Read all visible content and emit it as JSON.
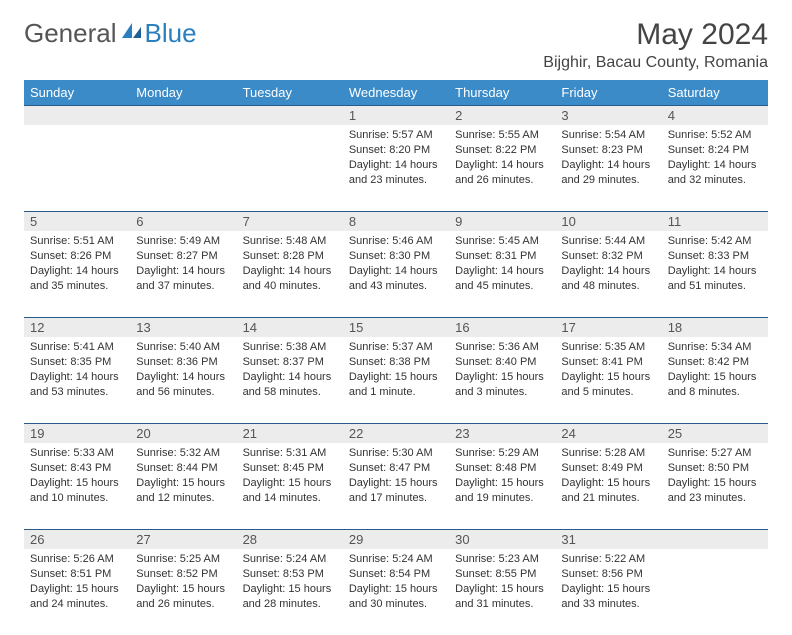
{
  "brand": {
    "part1": "General",
    "part2": "Blue"
  },
  "title": "May 2024",
  "location": "Bijghir, Bacau County, Romania",
  "colors": {
    "header_bg": "#3b8bc8",
    "daynum_bg": "#ececec",
    "rule": "#2a5a8a",
    "brand_blue": "#2a7fbf"
  },
  "weekdays": [
    "Sunday",
    "Monday",
    "Tuesday",
    "Wednesday",
    "Thursday",
    "Friday",
    "Saturday"
  ],
  "weeks": [
    [
      null,
      null,
      null,
      {
        "n": "1",
        "sr": "Sunrise: 5:57 AM",
        "ss": "Sunset: 8:20 PM",
        "d1": "Daylight: 14 hours",
        "d2": "and 23 minutes."
      },
      {
        "n": "2",
        "sr": "Sunrise: 5:55 AM",
        "ss": "Sunset: 8:22 PM",
        "d1": "Daylight: 14 hours",
        "d2": "and 26 minutes."
      },
      {
        "n": "3",
        "sr": "Sunrise: 5:54 AM",
        "ss": "Sunset: 8:23 PM",
        "d1": "Daylight: 14 hours",
        "d2": "and 29 minutes."
      },
      {
        "n": "4",
        "sr": "Sunrise: 5:52 AM",
        "ss": "Sunset: 8:24 PM",
        "d1": "Daylight: 14 hours",
        "d2": "and 32 minutes."
      }
    ],
    [
      {
        "n": "5",
        "sr": "Sunrise: 5:51 AM",
        "ss": "Sunset: 8:26 PM",
        "d1": "Daylight: 14 hours",
        "d2": "and 35 minutes."
      },
      {
        "n": "6",
        "sr": "Sunrise: 5:49 AM",
        "ss": "Sunset: 8:27 PM",
        "d1": "Daylight: 14 hours",
        "d2": "and 37 minutes."
      },
      {
        "n": "7",
        "sr": "Sunrise: 5:48 AM",
        "ss": "Sunset: 8:28 PM",
        "d1": "Daylight: 14 hours",
        "d2": "and 40 minutes."
      },
      {
        "n": "8",
        "sr": "Sunrise: 5:46 AM",
        "ss": "Sunset: 8:30 PM",
        "d1": "Daylight: 14 hours",
        "d2": "and 43 minutes."
      },
      {
        "n": "9",
        "sr": "Sunrise: 5:45 AM",
        "ss": "Sunset: 8:31 PM",
        "d1": "Daylight: 14 hours",
        "d2": "and 45 minutes."
      },
      {
        "n": "10",
        "sr": "Sunrise: 5:44 AM",
        "ss": "Sunset: 8:32 PM",
        "d1": "Daylight: 14 hours",
        "d2": "and 48 minutes."
      },
      {
        "n": "11",
        "sr": "Sunrise: 5:42 AM",
        "ss": "Sunset: 8:33 PM",
        "d1": "Daylight: 14 hours",
        "d2": "and 51 minutes."
      }
    ],
    [
      {
        "n": "12",
        "sr": "Sunrise: 5:41 AM",
        "ss": "Sunset: 8:35 PM",
        "d1": "Daylight: 14 hours",
        "d2": "and 53 minutes."
      },
      {
        "n": "13",
        "sr": "Sunrise: 5:40 AM",
        "ss": "Sunset: 8:36 PM",
        "d1": "Daylight: 14 hours",
        "d2": "and 56 minutes."
      },
      {
        "n": "14",
        "sr": "Sunrise: 5:38 AM",
        "ss": "Sunset: 8:37 PM",
        "d1": "Daylight: 14 hours",
        "d2": "and 58 minutes."
      },
      {
        "n": "15",
        "sr": "Sunrise: 5:37 AM",
        "ss": "Sunset: 8:38 PM",
        "d1": "Daylight: 15 hours",
        "d2": "and 1 minute."
      },
      {
        "n": "16",
        "sr": "Sunrise: 5:36 AM",
        "ss": "Sunset: 8:40 PM",
        "d1": "Daylight: 15 hours",
        "d2": "and 3 minutes."
      },
      {
        "n": "17",
        "sr": "Sunrise: 5:35 AM",
        "ss": "Sunset: 8:41 PM",
        "d1": "Daylight: 15 hours",
        "d2": "and 5 minutes."
      },
      {
        "n": "18",
        "sr": "Sunrise: 5:34 AM",
        "ss": "Sunset: 8:42 PM",
        "d1": "Daylight: 15 hours",
        "d2": "and 8 minutes."
      }
    ],
    [
      {
        "n": "19",
        "sr": "Sunrise: 5:33 AM",
        "ss": "Sunset: 8:43 PM",
        "d1": "Daylight: 15 hours",
        "d2": "and 10 minutes."
      },
      {
        "n": "20",
        "sr": "Sunrise: 5:32 AM",
        "ss": "Sunset: 8:44 PM",
        "d1": "Daylight: 15 hours",
        "d2": "and 12 minutes."
      },
      {
        "n": "21",
        "sr": "Sunrise: 5:31 AM",
        "ss": "Sunset: 8:45 PM",
        "d1": "Daylight: 15 hours",
        "d2": "and 14 minutes."
      },
      {
        "n": "22",
        "sr": "Sunrise: 5:30 AM",
        "ss": "Sunset: 8:47 PM",
        "d1": "Daylight: 15 hours",
        "d2": "and 17 minutes."
      },
      {
        "n": "23",
        "sr": "Sunrise: 5:29 AM",
        "ss": "Sunset: 8:48 PM",
        "d1": "Daylight: 15 hours",
        "d2": "and 19 minutes."
      },
      {
        "n": "24",
        "sr": "Sunrise: 5:28 AM",
        "ss": "Sunset: 8:49 PM",
        "d1": "Daylight: 15 hours",
        "d2": "and 21 minutes."
      },
      {
        "n": "25",
        "sr": "Sunrise: 5:27 AM",
        "ss": "Sunset: 8:50 PM",
        "d1": "Daylight: 15 hours",
        "d2": "and 23 minutes."
      }
    ],
    [
      {
        "n": "26",
        "sr": "Sunrise: 5:26 AM",
        "ss": "Sunset: 8:51 PM",
        "d1": "Daylight: 15 hours",
        "d2": "and 24 minutes."
      },
      {
        "n": "27",
        "sr": "Sunrise: 5:25 AM",
        "ss": "Sunset: 8:52 PM",
        "d1": "Daylight: 15 hours",
        "d2": "and 26 minutes."
      },
      {
        "n": "28",
        "sr": "Sunrise: 5:24 AM",
        "ss": "Sunset: 8:53 PM",
        "d1": "Daylight: 15 hours",
        "d2": "and 28 minutes."
      },
      {
        "n": "29",
        "sr": "Sunrise: 5:24 AM",
        "ss": "Sunset: 8:54 PM",
        "d1": "Daylight: 15 hours",
        "d2": "and 30 minutes."
      },
      {
        "n": "30",
        "sr": "Sunrise: 5:23 AM",
        "ss": "Sunset: 8:55 PM",
        "d1": "Daylight: 15 hours",
        "d2": "and 31 minutes."
      },
      {
        "n": "31",
        "sr": "Sunrise: 5:22 AM",
        "ss": "Sunset: 8:56 PM",
        "d1": "Daylight: 15 hours",
        "d2": "and 33 minutes."
      },
      null
    ]
  ]
}
